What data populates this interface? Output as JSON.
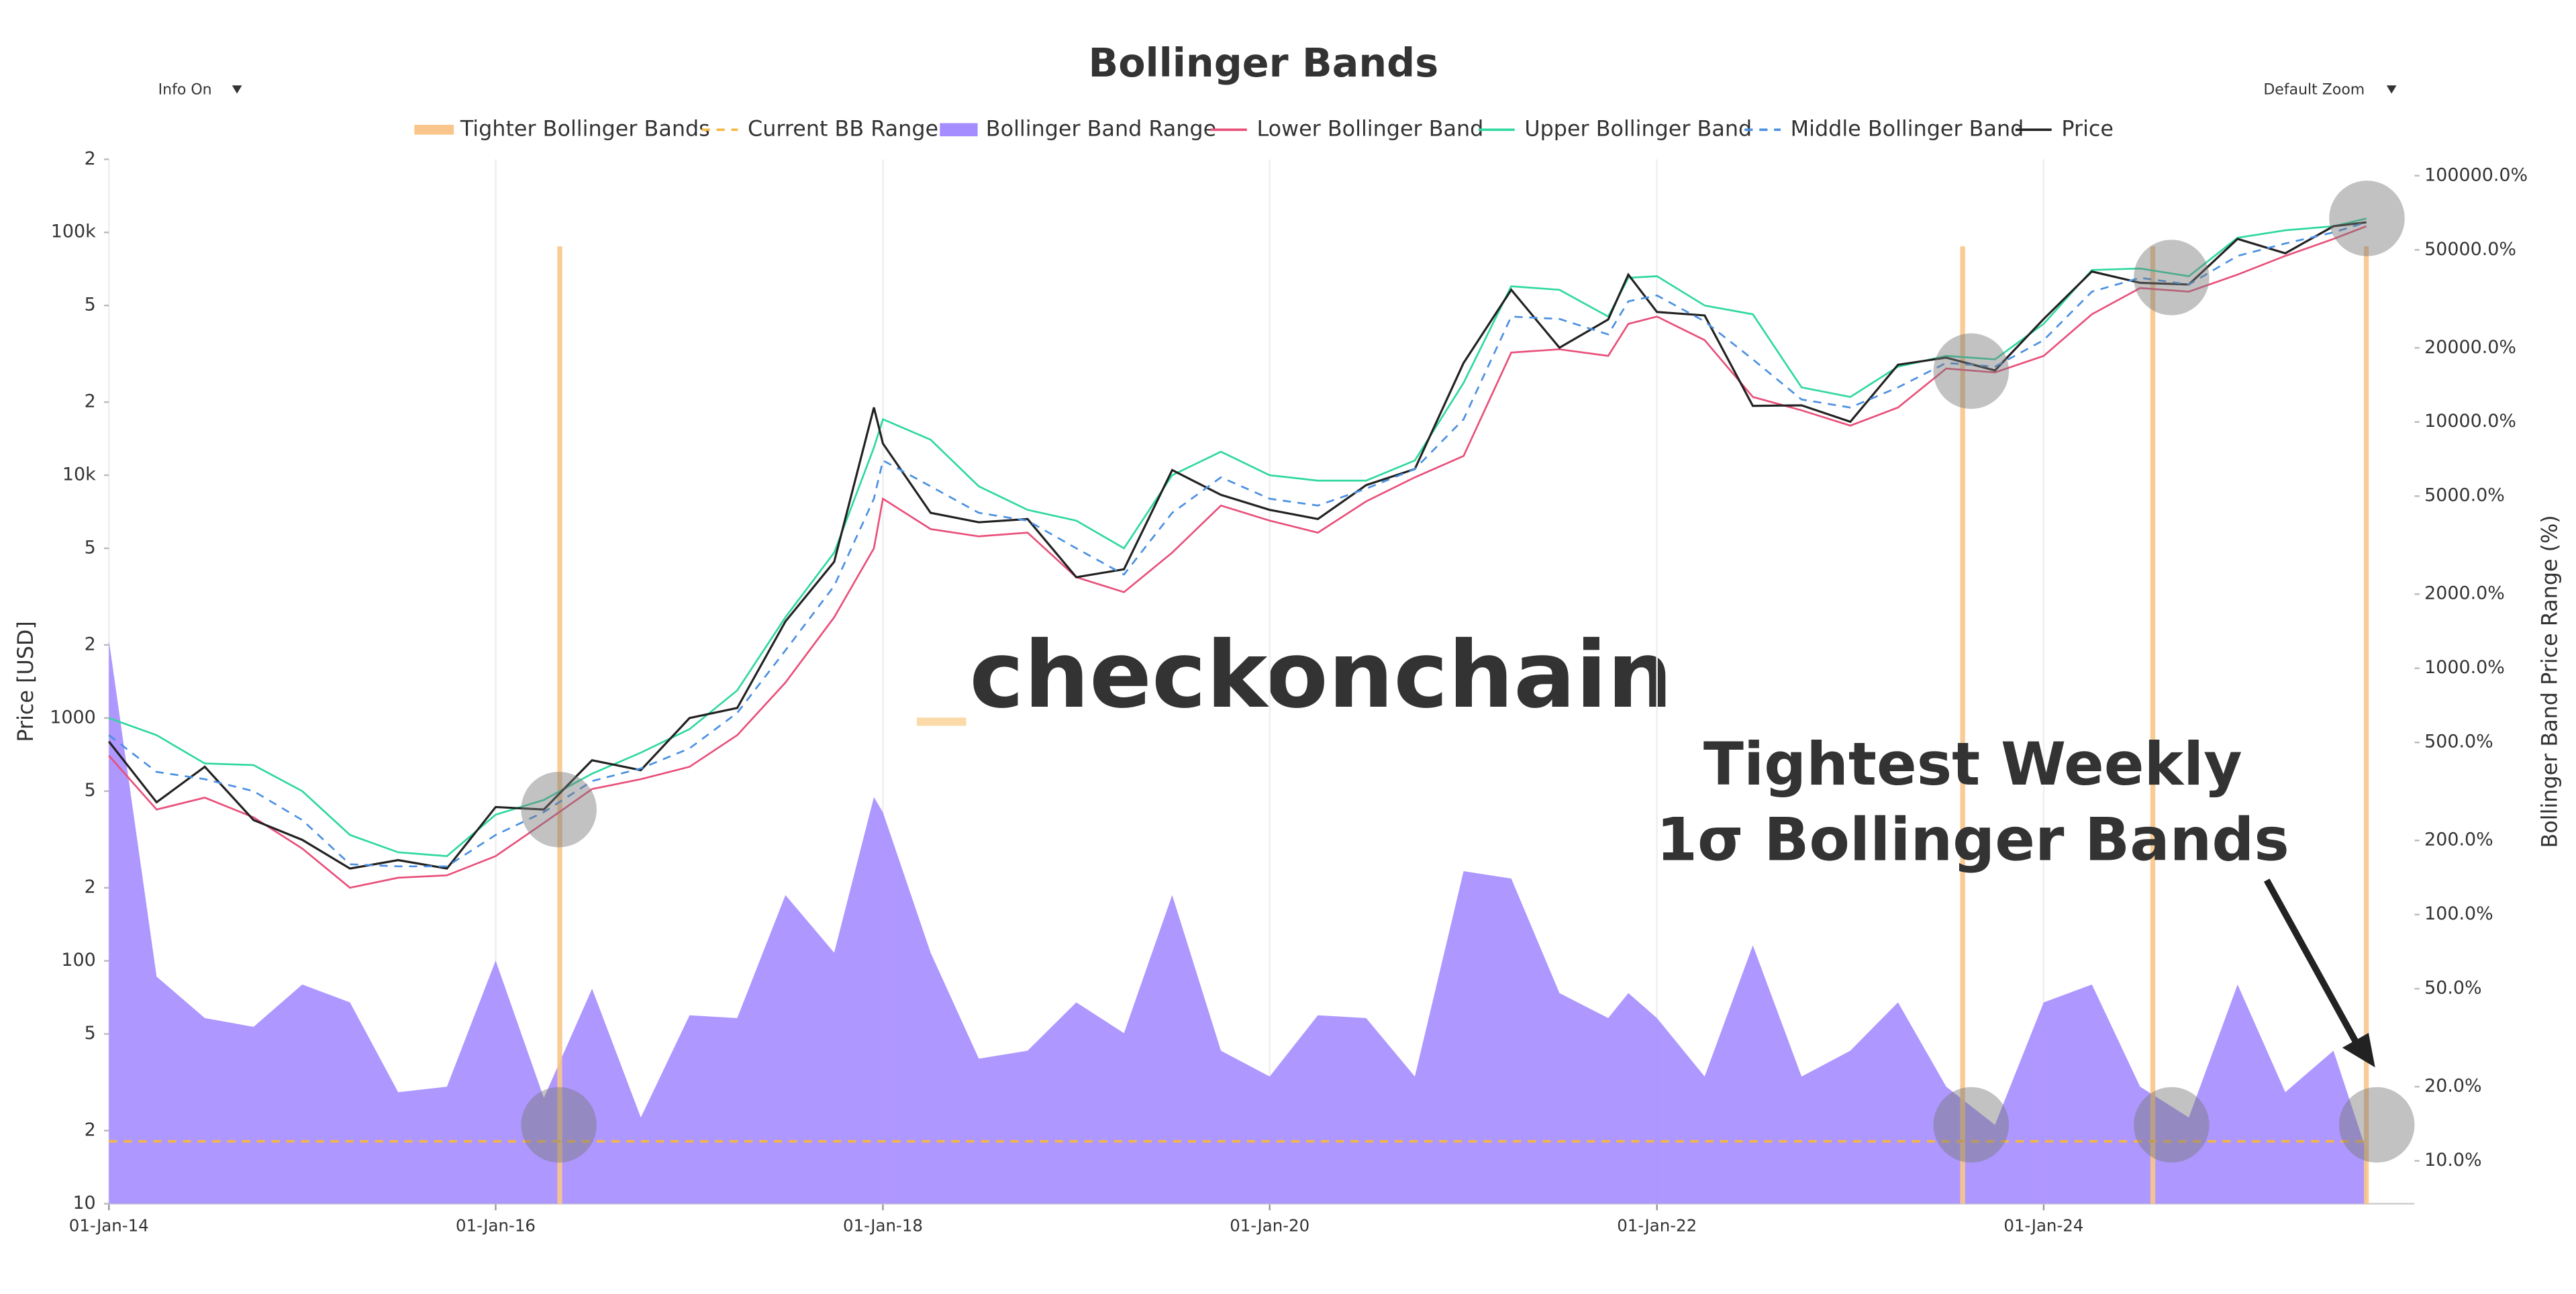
{
  "chart_data": {
    "type": "line",
    "title": "Bollinger Bands",
    "controls": {
      "info": "Info On",
      "zoom": "Default Zoom"
    },
    "watermark": "checkonchain",
    "ylabel": "Price [USD]",
    "y2label": "Bollinger Band Price Range (%)",
    "annotation": [
      "Tightest Weekly",
      "1σ Bollinger Bands"
    ],
    "yscale": "log",
    "y2scale": "log",
    "grid": "x",
    "legend": "top",
    "x": [
      "2014-01-01",
      "2014-04-01",
      "2014-07-01",
      "2014-10-01",
      "2015-01-01",
      "2015-04-01",
      "2015-07-01",
      "2015-10-01",
      "2016-01-01",
      "2016-04-01",
      "2016-07-01",
      "2016-10-01",
      "2017-01-01",
      "2017-04-01",
      "2017-07-01",
      "2017-10-01",
      "2017-12-15",
      "2018-01-01",
      "2018-04-01",
      "2018-07-01",
      "2018-10-01",
      "2019-01-01",
      "2019-04-01",
      "2019-07-01",
      "2019-10-01",
      "2020-01-01",
      "2020-04-01",
      "2020-07-01",
      "2020-10-01",
      "2021-01-01",
      "2021-04-01",
      "2021-07-01",
      "2021-10-01",
      "2021-11-08",
      "2022-01-01",
      "2022-04-01",
      "2022-07-01",
      "2022-10-01",
      "2023-01-01",
      "2023-04-01",
      "2023-07-01",
      "2023-10-01",
      "2024-01-01",
      "2024-04-01",
      "2024-07-01",
      "2024-10-01",
      "2025-01-01",
      "2025-04-01",
      "2025-07-01",
      "2025-09-01"
    ],
    "xlim": [
      "2014-01-01",
      "2025-12-01"
    ],
    "xticks": [
      {
        "value": "2014-01-01",
        "label": "01-Jan-14"
      },
      {
        "value": "2016-01-01",
        "label": "01-Jan-16"
      },
      {
        "value": "2018-01-01",
        "label": "01-Jan-18"
      },
      {
        "value": "2020-01-01",
        "label": "01-Jan-20"
      },
      {
        "value": "2022-01-01",
        "label": "01-Jan-22"
      },
      {
        "value": "2024-01-01",
        "label": "01-Jan-24"
      }
    ],
    "ylim": [
      10,
      200000
    ],
    "yticks": [
      10,
      {
        "value": 20,
        "label": "2"
      },
      {
        "value": 50,
        "label": "5"
      },
      100,
      {
        "value": 200,
        "label": "2"
      },
      {
        "value": 500,
        "label": "5"
      },
      1000,
      {
        "value": 2000,
        "label": "2"
      },
      {
        "value": 5000,
        "label": "5"
      },
      {
        "value": 10000,
        "label": "10k"
      },
      {
        "value": 20000,
        "label": "2"
      },
      {
        "value": 50000,
        "label": "5"
      },
      {
        "value": 100000,
        "label": "100k"
      },
      {
        "value": 200000,
        "label": "2"
      }
    ],
    "y2lim": [
      6.7,
      116600
    ],
    "y2ticks": [
      {
        "value": 10,
        "label": "10.0%"
      },
      {
        "value": 20,
        "label": "20.0%"
      },
      {
        "value": 50,
        "label": "50.0%"
      },
      {
        "value": 100,
        "label": "100.0%"
      },
      {
        "value": 200,
        "label": "200.0%"
      },
      {
        "value": 500,
        "label": "500.0%"
      },
      {
        "value": 1000,
        "label": "1000.0%"
      },
      {
        "value": 2000,
        "label": "2000.0%"
      },
      {
        "value": 5000,
        "label": "5000.0%"
      },
      {
        "value": 10000,
        "label": "10000.0%"
      },
      {
        "value": 20000,
        "label": "20000.0%"
      },
      {
        "value": 50000,
        "label": "50000.0%"
      },
      {
        "value": 100000,
        "label": "100000.0%"
      }
    ],
    "series": [
      {
        "name": "Tighter Bollinger Bands",
        "color": "#f9c58a",
        "kind": "events",
        "dates": [
          "2016-05-01",
          "2023-08-01",
          "2024-07-25",
          "2025-09-01"
        ]
      },
      {
        "name": "Current BB Range",
        "color": "#f5b842",
        "kind": "level",
        "axis": "y2",
        "value": 12
      },
      {
        "name": "Bollinger Band Range",
        "color": "#a58cff",
        "kind": "area",
        "axis": "y2",
        "values": [
          1300,
          56,
          38,
          35,
          52,
          44,
          19,
          20,
          65,
          18,
          50,
          15,
          39,
          38,
          120,
          70,
          300,
          260,
          70,
          26,
          28,
          44,
          33,
          120,
          28,
          22,
          39,
          38,
          22,
          150,
          140,
          48,
          38,
          48,
          38,
          22,
          75,
          22,
          28,
          44,
          20,
          14,
          44,
          52,
          20,
          15,
          52,
          19,
          28,
          11
        ]
      },
      {
        "name": "Lower Bollinger Band",
        "color": "#e8507a",
        "kind": "line",
        "values": [
          700,
          420,
          470,
          390,
          290,
          200,
          220,
          225,
          270,
          370,
          510,
          560,
          630,
          850,
          1400,
          2600,
          5000,
          8000,
          6000,
          5600,
          5800,
          3800,
          3300,
          4800,
          7500,
          6500,
          5800,
          7800,
          9800,
          12000,
          32000,
          33000,
          31000,
          42000,
          45000,
          36000,
          21000,
          18500,
          16000,
          19000,
          27500,
          26500,
          31000,
          46000,
          59000,
          57000,
          67000,
          80000,
          94000,
          106000
        ]
      },
      {
        "name": "Upper Bollinger Band",
        "color": "#2fd8a0",
        "kind": "line",
        "values": [
          1000,
          850,
          650,
          640,
          500,
          330,
          280,
          270,
          400,
          460,
          590,
          720,
          900,
          1300,
          2600,
          4800,
          13000,
          17000,
          14000,
          9000,
          7200,
          6500,
          5000,
          10000,
          12500,
          10000,
          9500,
          9500,
          11500,
          24000,
          60000,
          58000,
          45000,
          65000,
          66000,
          50000,
          46000,
          23000,
          21000,
          28000,
          31000,
          30000,
          42000,
          70000,
          71000,
          66000,
          95000,
          102000,
          106000,
          114000
        ]
      },
      {
        "name": "Middle Bollinger Band",
        "color": "#4a90e2",
        "kind": "dashed",
        "values": [
          850,
          600,
          560,
          500,
          380,
          250,
          245,
          245,
          330,
          410,
          550,
          620,
          750,
          1050,
          1900,
          3500,
          8000,
          11500,
          9000,
          7000,
          6500,
          5000,
          3900,
          7000,
          9800,
          8000,
          7500,
          8800,
          10600,
          17000,
          45000,
          44000,
          38000,
          52000,
          55000,
          43000,
          30000,
          20500,
          19000,
          23000,
          29000,
          28000,
          36000,
          57000,
          65000,
          61000,
          80000,
          90000,
          100000,
          110000
        ]
      },
      {
        "name": "Price",
        "color": "#222222",
        "kind": "line",
        "values": [
          800,
          450,
          630,
          380,
          315,
          240,
          260,
          240,
          430,
          420,
          670,
          610,
          1000,
          1100,
          2500,
          4400,
          19000,
          13500,
          7000,
          6400,
          6600,
          3800,
          4100,
          10500,
          8300,
          7200,
          6600,
          9100,
          10600,
          29000,
          58000,
          33500,
          43800,
          67000,
          47000,
          45500,
          19300,
          19400,
          16600,
          28500,
          30500,
          27000,
          44000,
          69000,
          62000,
          61000,
          94000,
          82000,
          106000,
          110000
        ]
      }
    ]
  }
}
